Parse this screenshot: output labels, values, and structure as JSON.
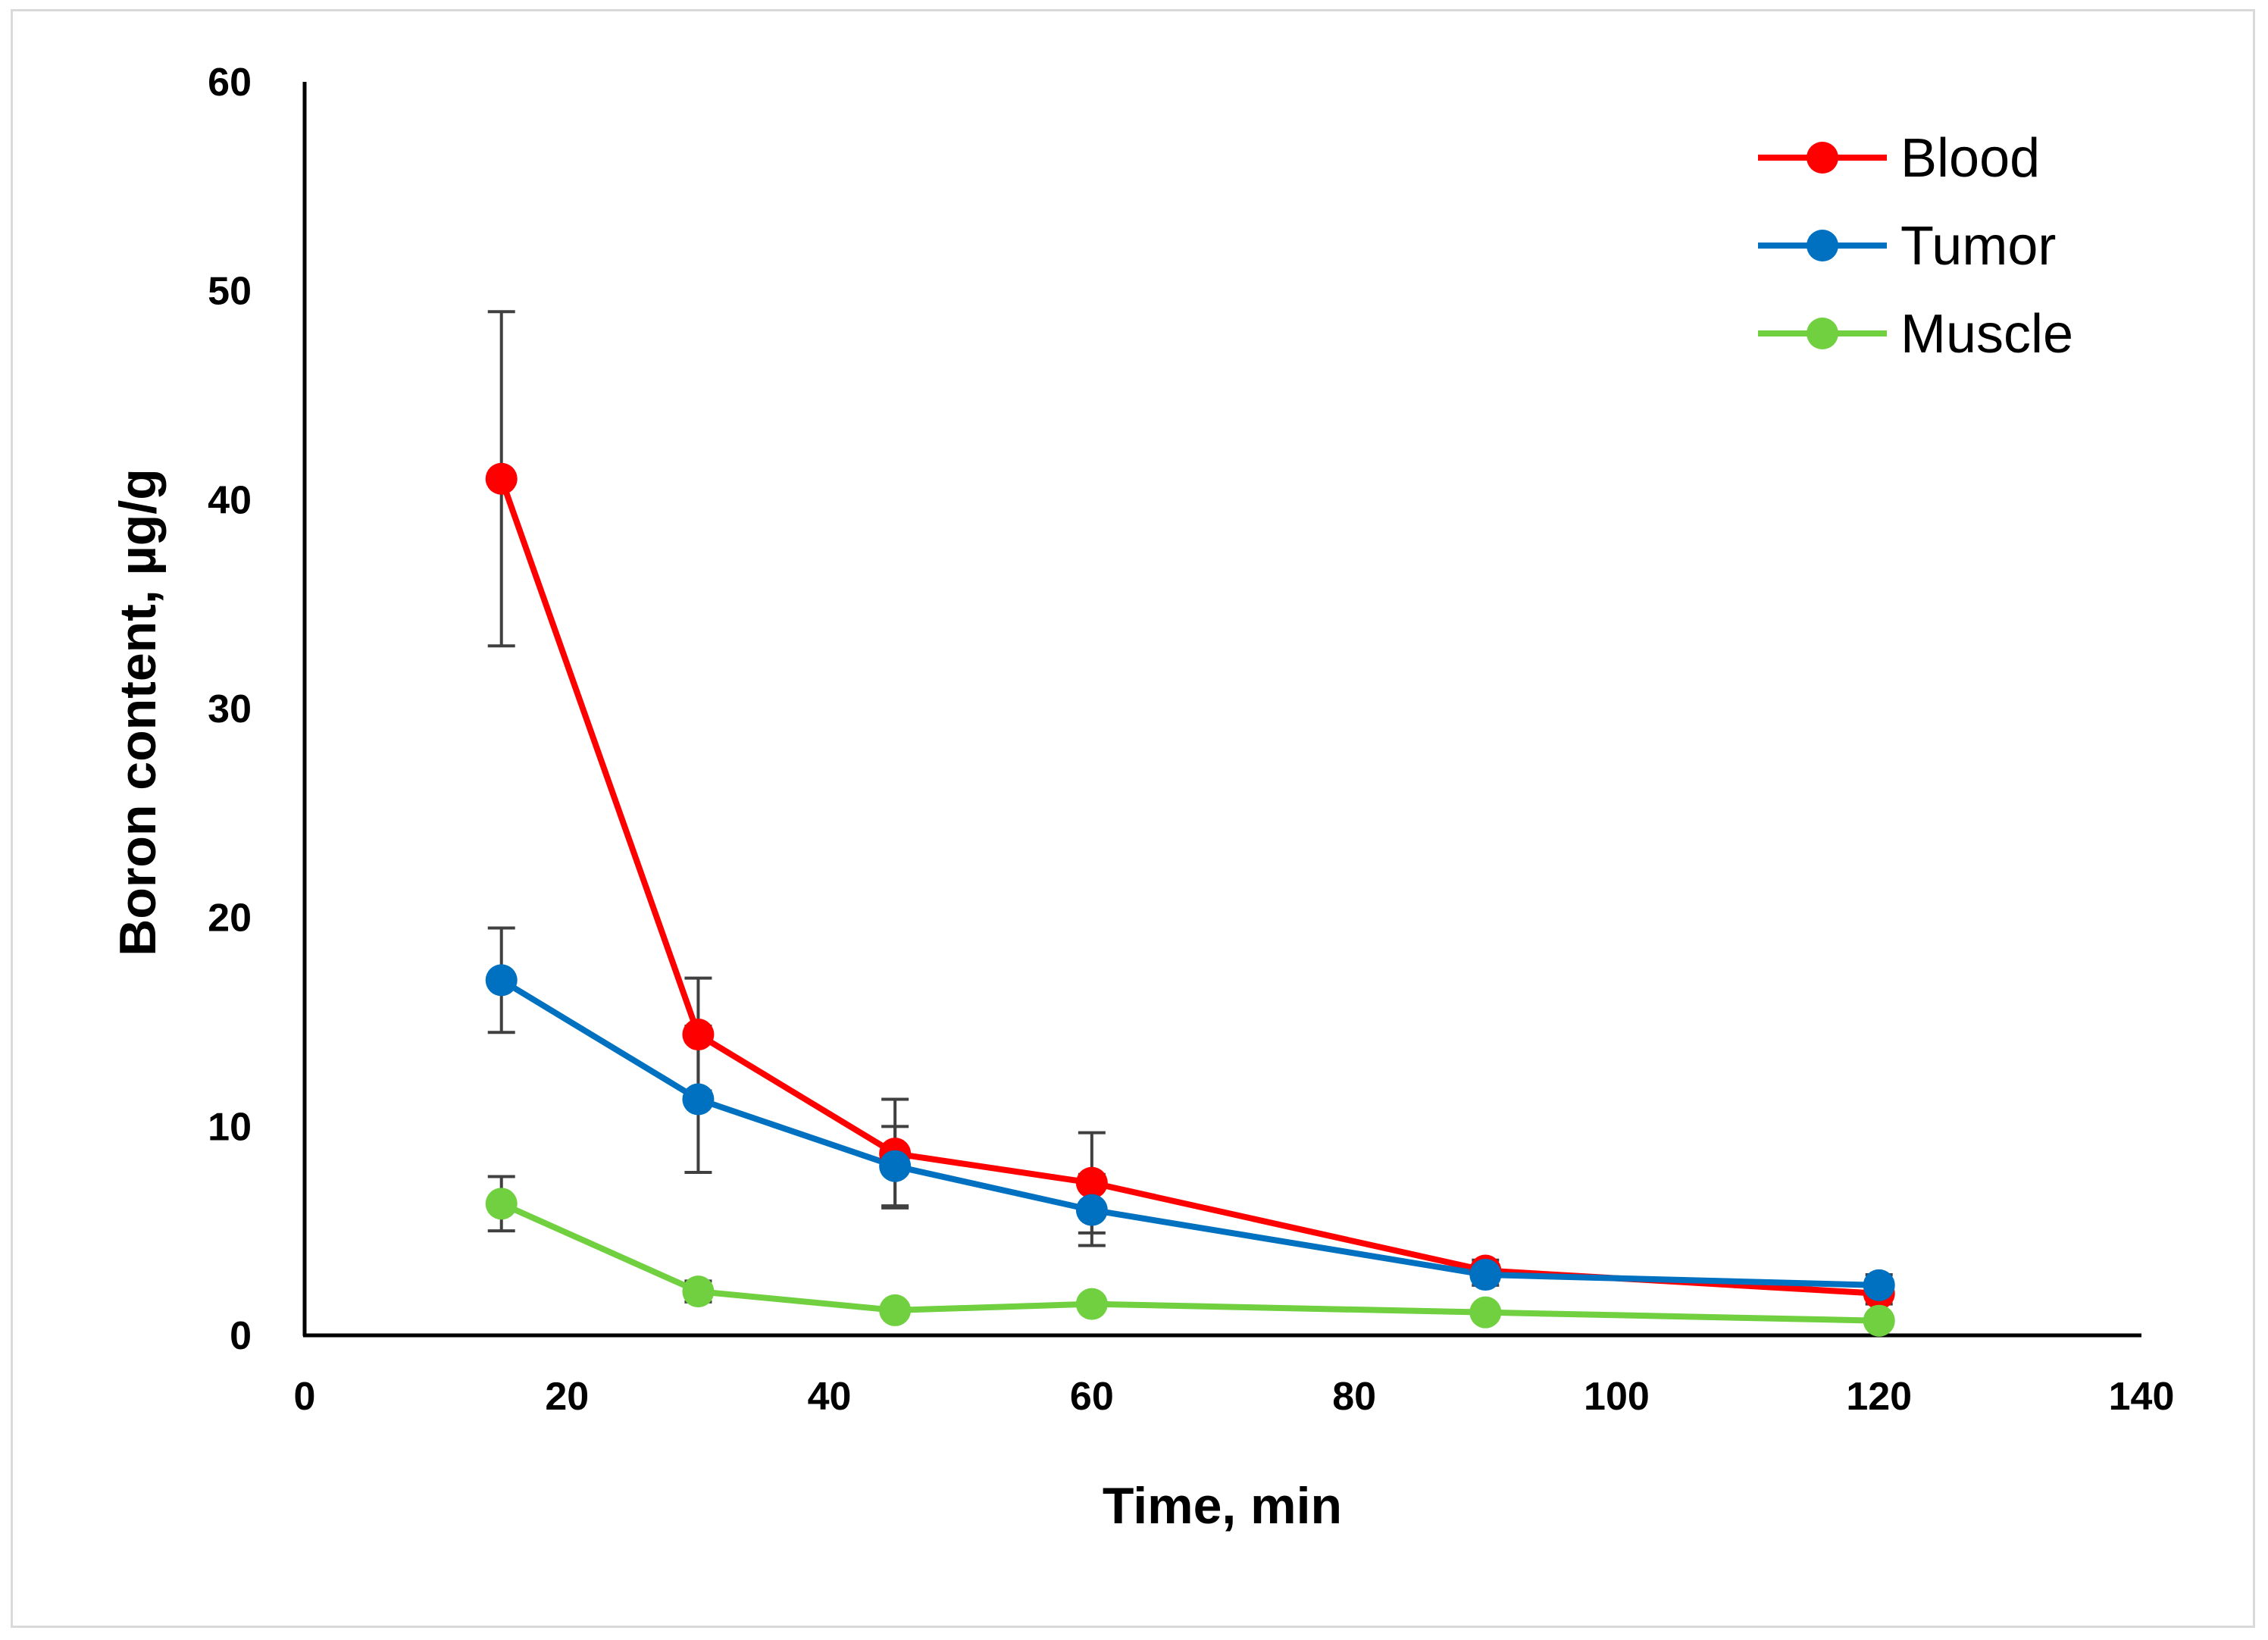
{
  "chart_data": {
    "type": "line",
    "title": "",
    "xlabel": "Time, min",
    "ylabel": "Boron content, µg/g",
    "xlim": [
      0,
      140
    ],
    "ylim": [
      0,
      60
    ],
    "x_ticks": [
      "0",
      "20",
      "40",
      "60",
      "80",
      "100",
      "120",
      "140"
    ],
    "y_ticks": [
      "0",
      "10",
      "20",
      "30",
      "40",
      "50",
      "60"
    ],
    "grid": false,
    "legend_position": "top-right",
    "x": [
      15,
      30,
      45,
      60,
      90,
      120
    ],
    "series": [
      {
        "name": "Blood",
        "color": "#ff0000",
        "values": [
          41.0,
          14.4,
          8.7,
          7.3,
          3.1,
          2.0
        ],
        "errors": [
          8.0,
          2.7,
          2.6,
          2.4,
          0.5,
          0.5
        ]
      },
      {
        "name": "Tumor",
        "color": "#0070c0",
        "values": [
          17.0,
          11.3,
          8.1,
          6.0,
          2.9,
          2.4
        ],
        "errors": [
          2.5,
          3.5,
          1.9,
          1.7,
          0.5,
          0.5
        ]
      },
      {
        "name": "Muscle",
        "color": "#70d040",
        "values": [
          6.3,
          2.1,
          1.2,
          1.5,
          1.1,
          0.7
        ],
        "errors": [
          1.3,
          0.5,
          0.3,
          0.3,
          0.2,
          0.2
        ]
      }
    ]
  }
}
